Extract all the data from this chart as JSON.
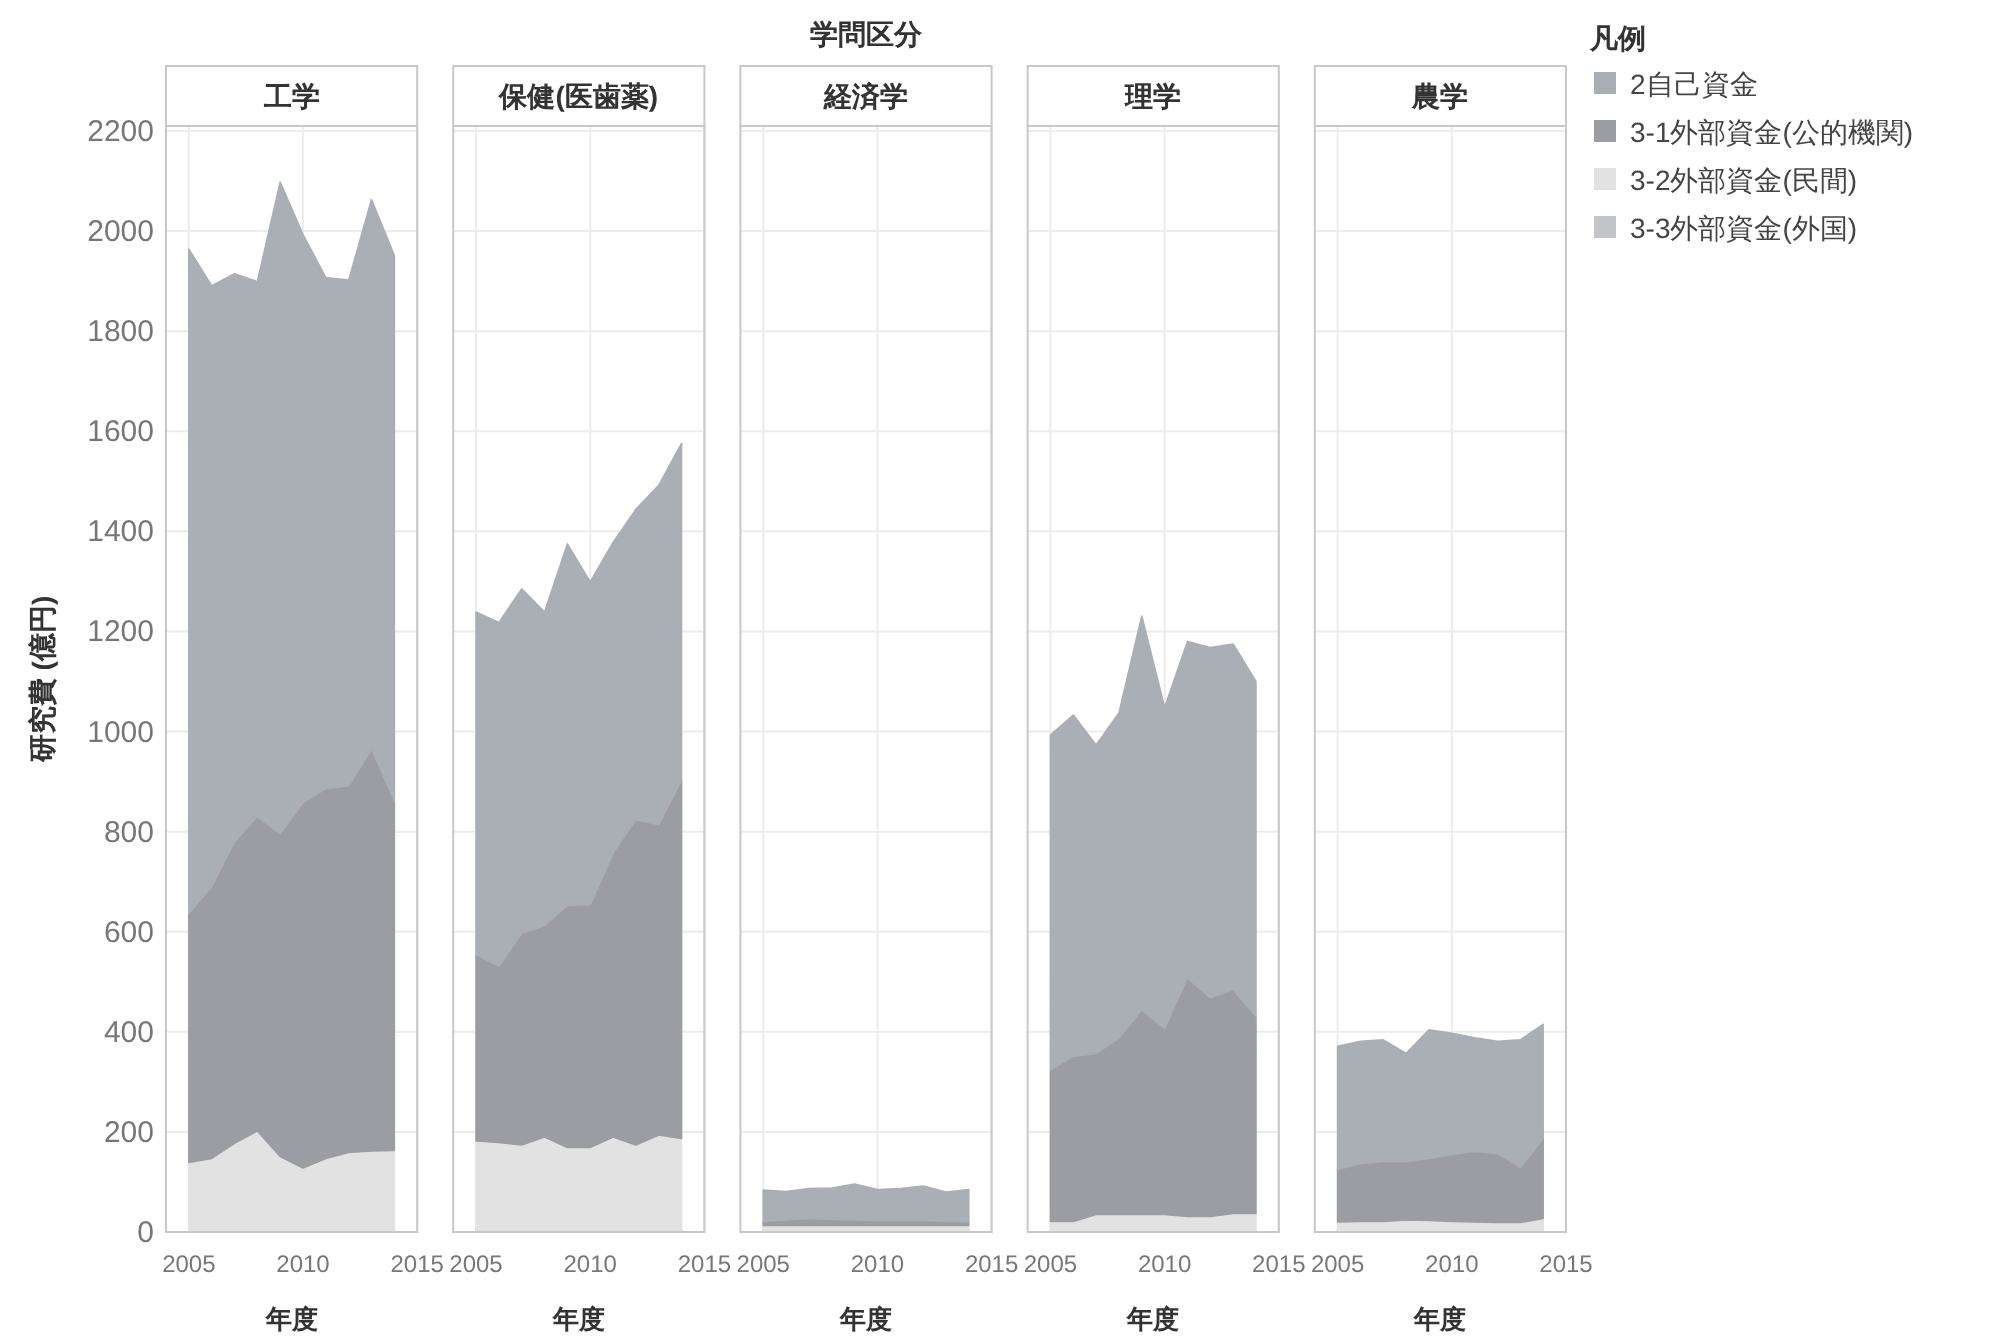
{
  "chart_data": [
    {
      "type": "area",
      "stacked": true,
      "title": "工学",
      "xlabel": "年度",
      "ylabel": "研究費 (億円)",
      "annotations": [
        "学問区分"
      ],
      "legend": "right",
      "legend_title": "凡例",
      "grid": true,
      "tick_labels": true,
      "x": [
        2005,
        2006,
        2007,
        2008,
        2009,
        2010,
        2011,
        2012,
        2013,
        2014
      ],
      "xlim": [
        2004,
        2015
      ],
      "xticks": [
        2005,
        2010,
        2015
      ],
      "ylim": [
        0,
        2210
      ],
      "yticks": [
        0,
        200,
        400,
        600,
        800,
        1000,
        1200,
        1400,
        1600,
        1800,
        2000,
        2200
      ],
      "series": [
        {
          "name": "3-3外部資金(外国)",
          "color": "#c3c5c9",
          "values": [
            3,
            3,
            3,
            3,
            3,
            3,
            3,
            3,
            3,
            3
          ]
        },
        {
          "name": "3-2外部資金(民間)",
          "color": "#e2e2e2",
          "values": [
            136,
            144,
            174,
            199,
            148,
            125,
            144,
            156,
            159,
            160
          ]
        },
        {
          "name": "3-1外部資金(公的機関)",
          "color": "#9c9da3",
          "values": [
            498,
            543,
            603,
            628,
            645,
            730,
            739,
            733,
            803,
            699
          ]
        },
        {
          "name": "2自己資金",
          "color": "#aaaeb5",
          "values": [
            1327,
            1201,
            1135,
            1069,
            1302,
            1135,
            1021,
            1010,
            1098,
            1089
          ]
        }
      ]
    },
    {
      "type": "area",
      "stacked": true,
      "title": "保健(医歯薬)",
      "xlabel": "年度",
      "grid": true,
      "tick_labels": "x",
      "x": [
        2005,
        2006,
        2007,
        2008,
        2009,
        2010,
        2011,
        2012,
        2013,
        2014
      ],
      "xlim": [
        2004,
        2015
      ],
      "xticks": [
        2005,
        2010,
        2015
      ],
      "ylim": [
        0,
        2210
      ],
      "yticks": [
        0,
        200,
        400,
        600,
        800,
        1000,
        1200,
        1400,
        1600,
        1800,
        2000,
        2200
      ],
      "series": [
        {
          "color": "#c3c5c9",
          "values": [
            4,
            4,
            4,
            4,
            4,
            4,
            4,
            4,
            4,
            4
          ]
        },
        {
          "color": "#e2e2e2",
          "values": [
            178,
            175,
            170,
            186,
            165,
            165,
            186,
            170,
            190,
            183
          ]
        },
        {
          "color": "#9c9da3",
          "values": [
            373,
            352,
            423,
            422,
            484,
            485,
            567,
            650,
            620,
            716
          ]
        },
        {
          "color": "#aaaeb5",
          "values": [
            684,
            687,
            688,
            627,
            722,
            645,
            621,
            620,
            678,
            673
          ]
        }
      ]
    },
    {
      "type": "area",
      "stacked": true,
      "title": "経済学",
      "xlabel": "年度",
      "grid": true,
      "tick_labels": "x",
      "x": [
        2005,
        2006,
        2007,
        2008,
        2009,
        2010,
        2011,
        2012,
        2013,
        2014
      ],
      "xlim": [
        2004,
        2015
      ],
      "xticks": [
        2005,
        2010,
        2015
      ],
      "ylim": [
        0,
        2210
      ],
      "yticks": [
        0,
        200,
        400,
        600,
        800,
        1000,
        1200,
        1400,
        1600,
        1800,
        2000,
        2200
      ],
      "series": [
        {
          "color": "#c3c5c9",
          "values": [
            3,
            3,
            3,
            3,
            3,
            3,
            3,
            3,
            3,
            3
          ]
        },
        {
          "color": "#e2e2e2",
          "values": [
            10,
            10,
            10,
            10,
            10,
            10,
            10,
            10,
            10,
            10
          ]
        },
        {
          "color": "#9c9da3",
          "values": [
            8,
            11,
            14,
            12,
            11,
            10,
            10,
            10,
            8,
            7
          ]
        },
        {
          "color": "#aaaeb5",
          "values": [
            63,
            57,
            60,
            63,
            72,
            62,
            64,
            69,
            59,
            65
          ]
        }
      ]
    },
    {
      "type": "area",
      "stacked": true,
      "title": "理学",
      "xlabel": "年度",
      "grid": true,
      "tick_labels": "x",
      "x": [
        2005,
        2006,
        2007,
        2008,
        2009,
        2010,
        2011,
        2012,
        2013,
        2014
      ],
      "xlim": [
        2004,
        2015
      ],
      "xticks": [
        2005,
        2010,
        2015
      ],
      "ylim": [
        0,
        2210
      ],
      "yticks": [
        0,
        200,
        400,
        600,
        800,
        1000,
        1200,
        1400,
        1600,
        1800,
        2000,
        2200
      ],
      "series": [
        {
          "color": "#c3c5c9",
          "values": [
            3,
            3,
            3,
            3,
            3,
            3,
            3,
            3,
            3,
            3
          ]
        },
        {
          "color": "#e2e2e2",
          "values": [
            18,
            18,
            32,
            32,
            32,
            32,
            28,
            28,
            34,
            34
          ]
        },
        {
          "color": "#9c9da3",
          "values": [
            303,
            330,
            322,
            352,
            409,
            372,
            477,
            437,
            447,
            394
          ]
        },
        {
          "color": "#aaaeb5",
          "values": [
            669,
            682,
            616,
            650,
            787,
            641,
            672,
            700,
            691,
            669
          ]
        }
      ]
    },
    {
      "type": "area",
      "stacked": true,
      "title": "農学",
      "xlabel": "年度",
      "grid": true,
      "tick_labels": "x",
      "x": [
        2005,
        2006,
        2007,
        2008,
        2009,
        2010,
        2011,
        2012,
        2013,
        2014
      ],
      "xlim": [
        2004,
        2015
      ],
      "xticks": [
        2005,
        2010,
        2015
      ],
      "ylim": [
        0,
        2210
      ],
      "yticks": [
        0,
        200,
        400,
        600,
        800,
        1000,
        1200,
        1400,
        1600,
        1800,
        2000,
        2200
      ],
      "series": [
        {
          "color": "#c3c5c9",
          "values": [
            3,
            3,
            3,
            3,
            3,
            3,
            3,
            3,
            3,
            3
          ]
        },
        {
          "color": "#e2e2e2",
          "values": [
            17,
            18,
            18,
            21,
            20,
            18,
            17,
            16,
            16,
            24
          ]
        },
        {
          "color": "#9c9da3",
          "values": [
            105,
            116,
            120,
            117,
            124,
            134,
            141,
            138,
            110,
            160
          ]
        },
        {
          "color": "#aaaeb5",
          "values": [
            246,
            244,
            243,
            216,
            257,
            242,
            227,
            224,
            255,
            228
          ]
        }
      ]
    }
  ]
}
